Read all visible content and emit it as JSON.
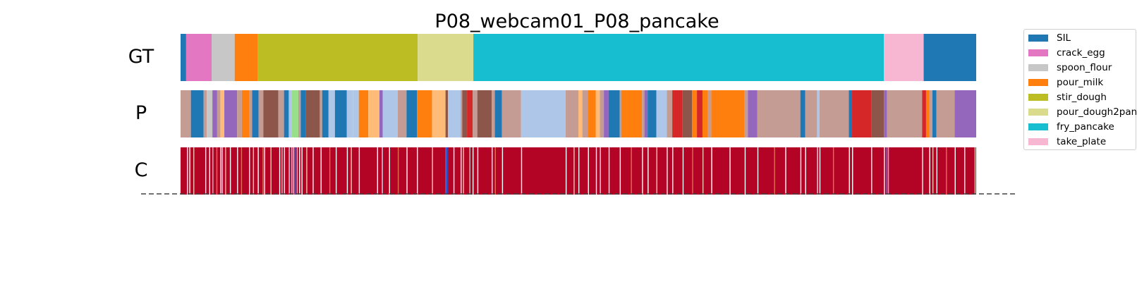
{
  "chart_data": {
    "type": "segmentation",
    "title": "P08_webcam01_P08_pancake",
    "rows": [
      {
        "label": "GT",
        "kind": "segments",
        "segments": [
          {
            "start": 0.0,
            "end": 0.007,
            "class": "SIL"
          },
          {
            "start": 0.007,
            "end": 0.039,
            "class": "crack_egg"
          },
          {
            "start": 0.039,
            "end": 0.068,
            "class": "spoon_flour"
          },
          {
            "start": 0.068,
            "end": 0.097,
            "class": "pour_milk"
          },
          {
            "start": 0.097,
            "end": 0.298,
            "class": "stir_dough"
          },
          {
            "start": 0.298,
            "end": 0.368,
            "class": "pour_dough2pan"
          },
          {
            "start": 0.368,
            "end": 0.884,
            "class": "fry_pancake"
          },
          {
            "start": 0.884,
            "end": 0.934,
            "class": "take_plate"
          },
          {
            "start": 0.934,
            "end": 1.0,
            "class": "SIL"
          }
        ]
      },
      {
        "label": "P",
        "kind": "segments",
        "segments": [
          {
            "start": 0.0,
            "end": 0.013,
            "color": "#c49c94"
          },
          {
            "start": 0.013,
            "end": 0.029,
            "color": "#1f77b4"
          },
          {
            "start": 0.029,
            "end": 0.033,
            "color": "#c49c94"
          },
          {
            "start": 0.033,
            "end": 0.04,
            "color": "#c7c7c7"
          },
          {
            "start": 0.04,
            "end": 0.046,
            "color": "#9467bd"
          },
          {
            "start": 0.046,
            "end": 0.05,
            "color": "#c49c94"
          },
          {
            "start": 0.05,
            "end": 0.055,
            "color": "#ffbb78"
          },
          {
            "start": 0.055,
            "end": 0.071,
            "color": "#9467bd"
          },
          {
            "start": 0.071,
            "end": 0.077,
            "color": "#c49c94"
          },
          {
            "start": 0.077,
            "end": 0.086,
            "color": "#ff7f0e"
          },
          {
            "start": 0.086,
            "end": 0.09,
            "color": "#c49c94"
          },
          {
            "start": 0.09,
            "end": 0.098,
            "color": "#1f77b4"
          },
          {
            "start": 0.098,
            "end": 0.104,
            "color": "#c49c94"
          },
          {
            "start": 0.104,
            "end": 0.123,
            "color": "#8c564b"
          },
          {
            "start": 0.123,
            "end": 0.13,
            "color": "#c49c94"
          },
          {
            "start": 0.13,
            "end": 0.136,
            "color": "#1f77b4"
          },
          {
            "start": 0.136,
            "end": 0.14,
            "color": "#aec7e8"
          },
          {
            "start": 0.14,
            "end": 0.148,
            "color": "#98df8a"
          },
          {
            "start": 0.148,
            "end": 0.151,
            "color": "#c49c94"
          },
          {
            "start": 0.151,
            "end": 0.157,
            "color": "#1f77b4"
          },
          {
            "start": 0.157,
            "end": 0.175,
            "color": "#8c564b"
          },
          {
            "start": 0.175,
            "end": 0.178,
            "color": "#c49c94"
          },
          {
            "start": 0.178,
            "end": 0.186,
            "color": "#1f77b4"
          },
          {
            "start": 0.186,
            "end": 0.194,
            "color": "#aec7e8"
          },
          {
            "start": 0.194,
            "end": 0.209,
            "color": "#1f77b4"
          },
          {
            "start": 0.209,
            "end": 0.217,
            "color": "#aec7e8"
          },
          {
            "start": 0.217,
            "end": 0.224,
            "color": "#aec7e8"
          },
          {
            "start": 0.224,
            "end": 0.236,
            "color": "#ff7f0e"
          },
          {
            "start": 0.236,
            "end": 0.25,
            "color": "#ffbb78"
          },
          {
            "start": 0.25,
            "end": 0.254,
            "color": "#9467bd"
          },
          {
            "start": 0.254,
            "end": 0.273,
            "color": "#aec7e8"
          },
          {
            "start": 0.273,
            "end": 0.284,
            "color": "#c49c94"
          },
          {
            "start": 0.284,
            "end": 0.297,
            "color": "#1f77b4"
          },
          {
            "start": 0.297,
            "end": 0.316,
            "color": "#ff7f0e"
          },
          {
            "start": 0.316,
            "end": 0.333,
            "color": "#ffbb78"
          },
          {
            "start": 0.333,
            "end": 0.336,
            "color": "#8c564b"
          },
          {
            "start": 0.336,
            "end": 0.352,
            "color": "#aec7e8"
          },
          {
            "start": 0.352,
            "end": 0.354,
            "color": "#c49c94"
          },
          {
            "start": 0.354,
            "end": 0.36,
            "color": "#8c564b"
          },
          {
            "start": 0.36,
            "end": 0.367,
            "color": "#d62728"
          },
          {
            "start": 0.367,
            "end": 0.373,
            "color": "#c49c94"
          },
          {
            "start": 0.373,
            "end": 0.391,
            "color": "#8c564b"
          },
          {
            "start": 0.391,
            "end": 0.395,
            "color": "#c49c94"
          },
          {
            "start": 0.395,
            "end": 0.404,
            "color": "#1f77b4"
          },
          {
            "start": 0.404,
            "end": 0.428,
            "color": "#c49c94"
          },
          {
            "start": 0.428,
            "end": 0.484,
            "color": "#aec7e8"
          },
          {
            "start": 0.484,
            "end": 0.5,
            "color": "#c49c94"
          },
          {
            "start": 0.5,
            "end": 0.505,
            "color": "#ffbb78"
          },
          {
            "start": 0.505,
            "end": 0.512,
            "color": "#c49c94"
          },
          {
            "start": 0.512,
            "end": 0.522,
            "color": "#ff7f0e"
          },
          {
            "start": 0.522,
            "end": 0.527,
            "color": "#ffbb78"
          },
          {
            "start": 0.527,
            "end": 0.532,
            "color": "#c49c94"
          },
          {
            "start": 0.532,
            "end": 0.538,
            "color": "#9467bd"
          },
          {
            "start": 0.538,
            "end": 0.552,
            "color": "#1f77b4"
          },
          {
            "start": 0.552,
            "end": 0.554,
            "color": "#c49c94"
          },
          {
            "start": 0.554,
            "end": 0.58,
            "color": "#ff7f0e"
          },
          {
            "start": 0.58,
            "end": 0.583,
            "color": "#c49c94"
          },
          {
            "start": 0.583,
            "end": 0.587,
            "color": "#9467bd"
          },
          {
            "start": 0.587,
            "end": 0.598,
            "color": "#1f77b4"
          },
          {
            "start": 0.598,
            "end": 0.611,
            "color": "#aec7e8"
          },
          {
            "start": 0.611,
            "end": 0.618,
            "color": "#c49c94"
          },
          {
            "start": 0.618,
            "end": 0.631,
            "color": "#d62728"
          },
          {
            "start": 0.631,
            "end": 0.643,
            "color": "#8c564b"
          },
          {
            "start": 0.643,
            "end": 0.649,
            "color": "#ff7f0e"
          },
          {
            "start": 0.649,
            "end": 0.656,
            "color": "#d62728"
          },
          {
            "start": 0.656,
            "end": 0.663,
            "color": "#ff7f0e"
          },
          {
            "start": 0.663,
            "end": 0.667,
            "color": "#c49c94"
          },
          {
            "start": 0.667,
            "end": 0.709,
            "color": "#ff7f0e"
          },
          {
            "start": 0.709,
            "end": 0.713,
            "color": "#c49c94"
          },
          {
            "start": 0.713,
            "end": 0.725,
            "color": "#9467bd"
          },
          {
            "start": 0.725,
            "end": 0.779,
            "color": "#c49c94"
          },
          {
            "start": 0.779,
            "end": 0.785,
            "color": "#1f77b4"
          },
          {
            "start": 0.785,
            "end": 0.8,
            "color": "#c49c94"
          },
          {
            "start": 0.8,
            "end": 0.803,
            "color": "#aec7e8"
          },
          {
            "start": 0.803,
            "end": 0.84,
            "color": "#c49c94"
          },
          {
            "start": 0.84,
            "end": 0.844,
            "color": "#1f77b4"
          },
          {
            "start": 0.844,
            "end": 0.868,
            "color": "#d62728"
          },
          {
            "start": 0.868,
            "end": 0.884,
            "color": "#8c564b"
          },
          {
            "start": 0.884,
            "end": 0.888,
            "color": "#9467bd"
          },
          {
            "start": 0.888,
            "end": 0.932,
            "color": "#c49c94"
          },
          {
            "start": 0.932,
            "end": 0.937,
            "color": "#d62728"
          },
          {
            "start": 0.937,
            "end": 0.941,
            "color": "#ff7f0e"
          },
          {
            "start": 0.941,
            "end": 0.945,
            "color": "#c49c94"
          },
          {
            "start": 0.945,
            "end": 0.95,
            "color": "#1f77b4"
          },
          {
            "start": 0.95,
            "end": 0.973,
            "color": "#c49c94"
          },
          {
            "start": 0.973,
            "end": 1.0,
            "color": "#9467bd"
          }
        ]
      },
      {
        "label": "C",
        "kind": "confidence",
        "base_color": "#b40426",
        "stripes": [
          {
            "pos": 0.008,
            "color": "#f7f7f7"
          },
          {
            "pos": 0.011,
            "color": "#ffffff"
          },
          {
            "pos": 0.016,
            "color": "#f4c6b1"
          },
          {
            "pos": 0.031,
            "color": "#f7f7f7"
          },
          {
            "pos": 0.036,
            "color": "#ffffff"
          },
          {
            "pos": 0.04,
            "color": "#c0c0c0"
          },
          {
            "pos": 0.045,
            "color": "#e36c55"
          },
          {
            "pos": 0.05,
            "color": "#f7f7f7"
          },
          {
            "pos": 0.052,
            "color": "#cfd9ea"
          },
          {
            "pos": 0.056,
            "color": "#f3b99f"
          },
          {
            "pos": 0.062,
            "color": "#ffffff"
          },
          {
            "pos": 0.071,
            "color": "#f7f7f7"
          },
          {
            "pos": 0.076,
            "color": "#e36c55"
          },
          {
            "pos": 0.086,
            "color": "#f7f7f7"
          },
          {
            "pos": 0.091,
            "color": "#f4c6b1"
          },
          {
            "pos": 0.097,
            "color": "#ffffff"
          },
          {
            "pos": 0.103,
            "color": "#e36c55"
          },
          {
            "pos": 0.105,
            "color": "#f7f7f7"
          },
          {
            "pos": 0.113,
            "color": "#f4c6b1"
          },
          {
            "pos": 0.124,
            "color": "#ffffff"
          },
          {
            "pos": 0.127,
            "color": "#c0c0c0"
          },
          {
            "pos": 0.13,
            "color": "#f7f7f7"
          },
          {
            "pos": 0.136,
            "color": "#cfd9ea"
          },
          {
            "pos": 0.139,
            "color": "#9ebeff"
          },
          {
            "pos": 0.141,
            "color": "#e0e0f0"
          },
          {
            "pos": 0.143,
            "color": "#5977e3"
          },
          {
            "pos": 0.146,
            "color": "#9ebeff"
          },
          {
            "pos": 0.149,
            "color": "#f7f7f7"
          },
          {
            "pos": 0.152,
            "color": "#ffffff"
          },
          {
            "pos": 0.158,
            "color": "#f4c6b1"
          },
          {
            "pos": 0.166,
            "color": "#f7f7f7"
          },
          {
            "pos": 0.176,
            "color": "#ffffff"
          },
          {
            "pos": 0.187,
            "color": "#e36c55"
          },
          {
            "pos": 0.195,
            "color": "#f7f7f7"
          },
          {
            "pos": 0.209,
            "color": "#ffffff"
          },
          {
            "pos": 0.214,
            "color": "#f4c6b1"
          },
          {
            "pos": 0.224,
            "color": "#f7f7f7"
          },
          {
            "pos": 0.247,
            "color": "#ffffff"
          },
          {
            "pos": 0.253,
            "color": "#cfd9ea"
          },
          {
            "pos": 0.262,
            "color": "#f7f7f7"
          },
          {
            "pos": 0.273,
            "color": "#e36c55"
          },
          {
            "pos": 0.284,
            "color": "#f7f7f7"
          },
          {
            "pos": 0.297,
            "color": "#ffffff"
          },
          {
            "pos": 0.316,
            "color": "#f4c6b1"
          },
          {
            "pos": 0.333,
            "color": "#5977e3"
          },
          {
            "pos": 0.335,
            "color": "#3b4cc0"
          },
          {
            "pos": 0.343,
            "color": "#f7f7f7"
          },
          {
            "pos": 0.352,
            "color": "#ffffff"
          },
          {
            "pos": 0.355,
            "color": "#f4c6b1"
          },
          {
            "pos": 0.363,
            "color": "#c0c0c0"
          },
          {
            "pos": 0.367,
            "color": "#f7f7f7"
          },
          {
            "pos": 0.373,
            "color": "#ffffff"
          },
          {
            "pos": 0.391,
            "color": "#f7f7f7"
          },
          {
            "pos": 0.395,
            "color": "#e36c55"
          },
          {
            "pos": 0.404,
            "color": "#ffffff"
          },
          {
            "pos": 0.428,
            "color": "#f7f7f7"
          },
          {
            "pos": 0.484,
            "color": "#ffffff"
          },
          {
            "pos": 0.494,
            "color": "#f4c6b1"
          },
          {
            "pos": 0.5,
            "color": "#f7f7f7"
          },
          {
            "pos": 0.512,
            "color": "#ffffff"
          },
          {
            "pos": 0.522,
            "color": "#f7f7f7"
          },
          {
            "pos": 0.527,
            "color": "#cfd9ea"
          },
          {
            "pos": 0.538,
            "color": "#f7f7f7"
          },
          {
            "pos": 0.552,
            "color": "#ffffff"
          },
          {
            "pos": 0.566,
            "color": "#e36c55"
          },
          {
            "pos": 0.58,
            "color": "#f7f7f7"
          },
          {
            "pos": 0.587,
            "color": "#ffffff"
          },
          {
            "pos": 0.598,
            "color": "#f4c6b1"
          },
          {
            "pos": 0.611,
            "color": "#f7f7f7"
          },
          {
            "pos": 0.618,
            "color": "#ffffff"
          },
          {
            "pos": 0.631,
            "color": "#f7f7f7"
          },
          {
            "pos": 0.643,
            "color": "#e36c55"
          },
          {
            "pos": 0.656,
            "color": "#f4c6b1"
          },
          {
            "pos": 0.667,
            "color": "#ffffff"
          },
          {
            "pos": 0.69,
            "color": "#f7f7f7"
          },
          {
            "pos": 0.709,
            "color": "#ffffff"
          },
          {
            "pos": 0.725,
            "color": "#f7f7f7"
          },
          {
            "pos": 0.746,
            "color": "#e36c55"
          },
          {
            "pos": 0.76,
            "color": "#ffffff"
          },
          {
            "pos": 0.779,
            "color": "#f7f7f7"
          },
          {
            "pos": 0.785,
            "color": "#ffffff"
          },
          {
            "pos": 0.8,
            "color": "#cfd9ea"
          },
          {
            "pos": 0.803,
            "color": "#f7f7f7"
          },
          {
            "pos": 0.82,
            "color": "#e36c55"
          },
          {
            "pos": 0.84,
            "color": "#f7f7f7"
          },
          {
            "pos": 0.844,
            "color": "#ffffff"
          },
          {
            "pos": 0.868,
            "color": "#f7f7f7"
          },
          {
            "pos": 0.884,
            "color": "#ffffff"
          },
          {
            "pos": 0.887,
            "color": "#5977e3"
          },
          {
            "pos": 0.889,
            "color": "#9ebeff"
          },
          {
            "pos": 0.932,
            "color": "#f7f7f7"
          },
          {
            "pos": 0.941,
            "color": "#ffffff"
          },
          {
            "pos": 0.945,
            "color": "#f4c6b1"
          },
          {
            "pos": 0.95,
            "color": "#f7f7f7"
          },
          {
            "pos": 0.962,
            "color": "#e36c55"
          },
          {
            "pos": 0.973,
            "color": "#ffffff"
          },
          {
            "pos": 0.985,
            "color": "#f7f7f7"
          },
          {
            "pos": 0.998,
            "color": "#f4c6b1"
          }
        ]
      }
    ],
    "legend": {
      "position": "top-right",
      "entries": [
        {
          "label": "SIL",
          "color": "#1f77b4"
        },
        {
          "label": "crack_egg",
          "color": "#e377c2"
        },
        {
          "label": "spoon_flour",
          "color": "#c7c7c7"
        },
        {
          "label": "pour_milk",
          "color": "#ff7f0e"
        },
        {
          "label": "stir_dough",
          "color": "#bcbd22"
        },
        {
          "label": "pour_dough2pan",
          "color": "#dbdb8d"
        },
        {
          "label": "fry_pancake",
          "color": "#17becf"
        },
        {
          "label": "take_plate",
          "color": "#f7b6d2"
        }
      ]
    },
    "baseline": "dashed"
  }
}
